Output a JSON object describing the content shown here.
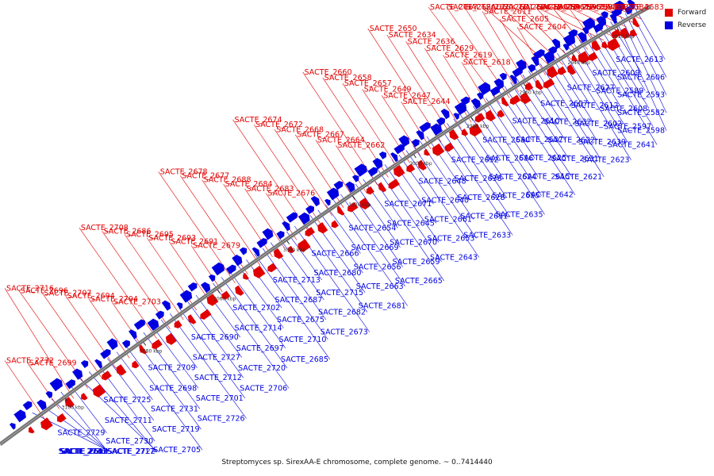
{
  "caption": "Streptomyces sp. SirexAA-E chromosome, complete genome. ~ 0..7414440",
  "legend": {
    "forward_label": "Forward",
    "reverse_label": "Reverse",
    "forward_color": "#e00000",
    "reverse_color": "#0000e0"
  },
  "colors": {
    "backbone": "#555555",
    "forward_leader": "#e00000",
    "reverse_leader": "#0000e0"
  },
  "scale_ticks": [
    "2920 kbp",
    "2940 kbp",
    "2960 kbp",
    "2980 kbp",
    "3000 kbp",
    "3020 kbp",
    "3040 kbp",
    "3060 kbp",
    "3080 kbp",
    "3100 kbp"
  ],
  "reverse_labels": [
    "SACTE_2613",
    "SACTE_2606",
    "SACTE_2593",
    "SACTE_2582",
    "SACTE_2598",
    "SACTE_2609",
    "SACTE_2589",
    "SACTE_2608",
    "SACTE_2597",
    "SACTE_2641",
    "SACTE_2627",
    "SACTE_2612",
    "SACTE_2602",
    "SACTE_2639",
    "SACTE_2623",
    "SACTE_2607",
    "SACTE_2632",
    "SACTE_2622",
    "SACTE_2631",
    "SACTE_2621",
    "SACTE_2610",
    "SACTE_2637",
    "SACTE_2625",
    "SACTE_2615",
    "SACTE_2642",
    "SACTE_2630",
    "SACTE_2616",
    "SACTE_2624",
    "SACTE_2655",
    "SACTE_2635",
    "SACTE_2652",
    "SACTE_2638",
    "SACTE_2628",
    "SACTE_2651",
    "SACTE_2633",
    "SACTE_2648",
    "SACTE_2640",
    "SACTE_2661",
    "SACTE_2653",
    "SACTE_2643",
    "SACTE_2671",
    "SACTE_2645",
    "SACTE_2670",
    "SACTE_2659",
    "SACTE_2665",
    "SACTE_2654",
    "SACTE_2669",
    "SACTE_2656",
    "SACTE_2663",
    "SACTE_2681",
    "SACTE_2666",
    "SACTE_2680",
    "SACTE_2715",
    "SACTE_2682",
    "SACTE_2673",
    "SACTE_2713",
    "SACTE_2687",
    "SACTE_2675",
    "SACTE_2710",
    "SACTE_2685",
    "SACTE_2702",
    "SACTE_2714",
    "SACTE_2697",
    "SACTE_2720",
    "SACTE_2706",
    "SACTE_2690",
    "SACTE_2727",
    "SACTE_2712",
    "SACTE_2701",
    "SACTE_2726",
    "SACTE_2709",
    "SACTE_2698",
    "SACTE_2731",
    "SACTE_2719",
    "SACTE_2705",
    "SACTE_2725",
    "SACTE_2711",
    "SACTE_2730",
    "SACTE_2717",
    "SACTE_2722",
    "SACTE_2729",
    "SACTE_2736",
    "SACTE_2741",
    "SACTE_2603",
    "SACTE_2614"
  ],
  "forward_labels": [
    "SACTE_2583",
    "SACTE_2584",
    "SACTE_2586",
    "SACTE_2588",
    "SACTE_2590",
    "SACTE_2591",
    "SACTE_2594",
    "SACTE_2595",
    "SACTE_2596",
    "SACTE_2599",
    "SACTE_2600",
    "SACTE_2601",
    "SACTE_2604",
    "SACTE_2605",
    "SACTE_2611",
    "SACTE_2620",
    "SACTE_2626",
    "SACTE_2617",
    "SACTE_2618",
    "SACTE_2619",
    "SACTE_2629",
    "SACTE_2636",
    "SACTE_2634",
    "SACTE_2650",
    "SACTE_2644",
    "SACTE_2647",
    "SACTE_2649",
    "SACTE_2657",
    "SACTE_2658",
    "SACTE_2660",
    "SACTE_2662",
    "SACTE_2664",
    "SACTE_2667",
    "SACTE_2668",
    "SACTE_2672",
    "SACTE_2674",
    "SACTE_2676",
    "SACTE_2683",
    "SACTE_2684",
    "SACTE_2688",
    "SACTE_2677",
    "SACTE_2678",
    "SACTE_2679",
    "SACTE_2691",
    "SACTE_2693",
    "SACTE_2695",
    "SACTE_2686",
    "SACTE_2708",
    "SACTE_2703",
    "SACTE_2704",
    "SACTE_2694",
    "SACTE_2707",
    "SACTE_2696",
    "SACTE_2716",
    "SACTE_2699",
    "SACTE_2732"
  ]
}
